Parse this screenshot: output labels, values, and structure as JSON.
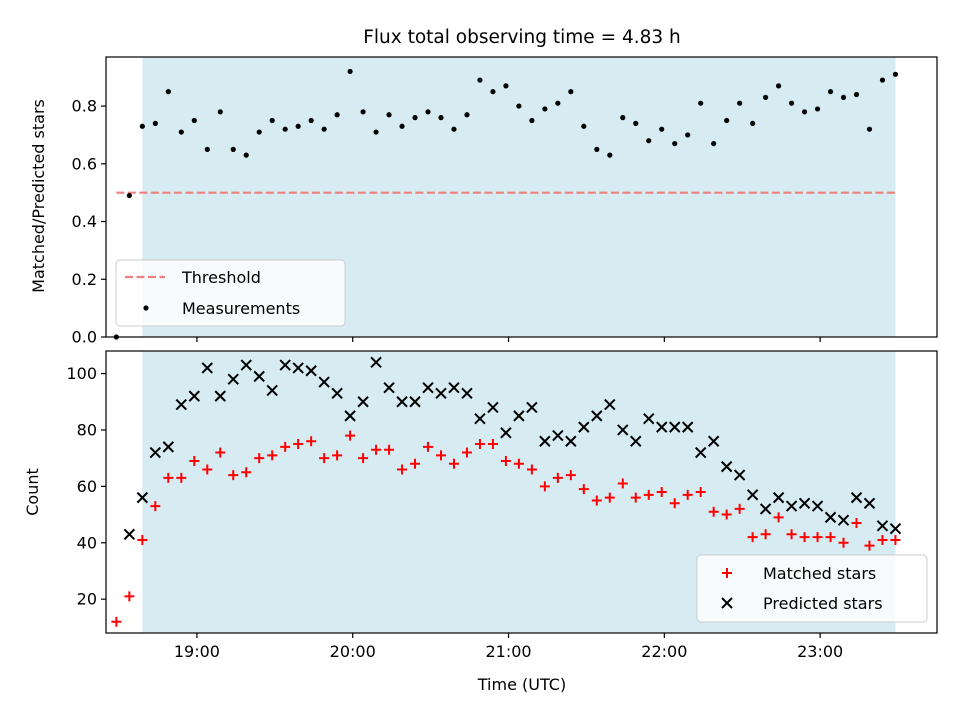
{
  "chart_data": [
    {
      "type": "scatter",
      "title": "Flux total observing time = 4.83 h",
      "xlabel": "",
      "ylabel": "Matched/Predicted stars",
      "xlim": [
        "18:25",
        "23:45"
      ],
      "ylim": [
        0,
        0.97
      ],
      "yticks": [
        0.0,
        0.2,
        0.4,
        0.6,
        0.8
      ],
      "ytick_labels": [
        "0.0",
        "0.2",
        "0.4",
        "0.6",
        "0.8"
      ],
      "shaded_span": [
        "18:39",
        "23:29"
      ],
      "threshold": {
        "name": "Threshold",
        "value": 0.5,
        "x_range": [
          "18:29",
          "23:29"
        ],
        "color": "#f08080",
        "style": "dashed"
      },
      "legend": {
        "placement": "lower-left",
        "entries": [
          "Threshold",
          "Measurements"
        ]
      },
      "series": [
        {
          "name": "Measurements",
          "color": "#000000",
          "marker": "dot",
          "x": [
            "18:29",
            "18:34",
            "18:39",
            "18:44",
            "18:49",
            "18:54",
            "18:59",
            "19:04",
            "19:09",
            "19:14",
            "19:19",
            "19:24",
            "19:29",
            "19:34",
            "19:39",
            "19:44",
            "19:49",
            "19:54",
            "19:59",
            "20:04",
            "20:09",
            "20:14",
            "20:19",
            "20:24",
            "20:29",
            "20:34",
            "20:39",
            "20:44",
            "20:49",
            "20:54",
            "20:59",
            "21:04",
            "21:09",
            "21:14",
            "21:19",
            "21:24",
            "21:29",
            "21:34",
            "21:39",
            "21:44",
            "21:49",
            "21:54",
            "21:59",
            "22:04",
            "22:09",
            "22:14",
            "22:19",
            "22:24",
            "22:29",
            "22:34",
            "22:39",
            "22:44",
            "22:49",
            "22:54",
            "22:59",
            "23:04",
            "23:09",
            "23:14",
            "23:19",
            "23:24",
            "23:29"
          ],
          "y": [
            0.0,
            0.49,
            0.73,
            0.74,
            0.85,
            0.71,
            0.75,
            0.65,
            0.78,
            0.65,
            0.63,
            0.71,
            0.75,
            0.72,
            0.73,
            0.75,
            0.72,
            0.77,
            0.92,
            0.78,
            0.71,
            0.77,
            0.73,
            0.76,
            0.78,
            0.76,
            0.72,
            0.77,
            0.89,
            0.85,
            0.87,
            0.8,
            0.75,
            0.79,
            0.81,
            0.85,
            0.73,
            0.65,
            0.63,
            0.76,
            0.74,
            0.68,
            0.72,
            0.67,
            0.7,
            0.81,
            0.67,
            0.75,
            0.81,
            0.74,
            0.83,
            0.87,
            0.81,
            0.78,
            0.79,
            0.85,
            0.83,
            0.84,
            0.72,
            0.89,
            0.91
          ]
        }
      ]
    },
    {
      "type": "scatter",
      "title": "",
      "xlabel": "Time (UTC)",
      "ylabel": "Count",
      "xlim": [
        "18:25",
        "23:45"
      ],
      "ylim": [
        8,
        108
      ],
      "xticks": [
        "19:00",
        "20:00",
        "21:00",
        "22:00",
        "23:00"
      ],
      "yticks": [
        20,
        40,
        60,
        80,
        100
      ],
      "ytick_labels": [
        "20",
        "40",
        "60",
        "80",
        "100"
      ],
      "shaded_span": [
        "18:39",
        "23:29"
      ],
      "legend": {
        "placement": "lower-right",
        "entries": [
          "Matched stars",
          "Predicted stars"
        ]
      },
      "series": [
        {
          "name": "Matched stars",
          "color": "#ff0000",
          "marker": "plus",
          "x": [
            "18:29",
            "18:34",
            "18:39",
            "18:44",
            "18:49",
            "18:54",
            "18:59",
            "19:04",
            "19:09",
            "19:14",
            "19:19",
            "19:24",
            "19:29",
            "19:34",
            "19:39",
            "19:44",
            "19:49",
            "19:54",
            "19:59",
            "20:04",
            "20:09",
            "20:14",
            "20:19",
            "20:24",
            "20:29",
            "20:34",
            "20:39",
            "20:44",
            "20:49",
            "20:54",
            "20:59",
            "21:04",
            "21:09",
            "21:14",
            "21:19",
            "21:24",
            "21:29",
            "21:34",
            "21:39",
            "21:44",
            "21:49",
            "21:54",
            "21:59",
            "22:04",
            "22:09",
            "22:14",
            "22:19",
            "22:24",
            "22:29",
            "22:34",
            "22:39",
            "22:44",
            "22:49",
            "22:54",
            "22:59",
            "23:04",
            "23:09",
            "23:14",
            "23:19",
            "23:24",
            "23:29"
          ],
          "y": [
            12,
            21,
            41,
            53,
            63,
            63,
            69,
            66,
            72,
            64,
            65,
            70,
            71,
            74,
            75,
            76,
            70,
            71,
            78,
            70,
            73,
            73,
            66,
            68,
            74,
            71,
            68,
            72,
            75,
            75,
            69,
            68,
            66,
            60,
            63,
            64,
            59,
            55,
            56,
            61,
            56,
            57,
            58,
            54,
            57,
            58,
            51,
            50,
            52,
            42,
            43,
            49,
            43,
            42,
            42,
            42,
            40,
            47,
            39,
            41,
            41
          ]
        },
        {
          "name": "Predicted stars",
          "color": "#000000",
          "marker": "x",
          "x": [
            "18:34",
            "18:39",
            "18:44",
            "18:49",
            "18:54",
            "18:59",
            "19:04",
            "19:09",
            "19:14",
            "19:19",
            "19:24",
            "19:29",
            "19:34",
            "19:39",
            "19:44",
            "19:49",
            "19:54",
            "19:59",
            "20:04",
            "20:09",
            "20:14",
            "20:19",
            "20:24",
            "20:29",
            "20:34",
            "20:39",
            "20:44",
            "20:49",
            "20:54",
            "20:59",
            "21:04",
            "21:09",
            "21:14",
            "21:19",
            "21:24",
            "21:29",
            "21:34",
            "21:39",
            "21:44",
            "21:49",
            "21:54",
            "21:59",
            "22:04",
            "22:09",
            "22:14",
            "22:19",
            "22:24",
            "22:29",
            "22:34",
            "22:39",
            "22:44",
            "22:49",
            "22:54",
            "22:59",
            "23:04",
            "23:09",
            "23:14",
            "23:19",
            "23:24",
            "23:29"
          ],
          "y": [
            43,
            56,
            72,
            74,
            89,
            92,
            102,
            92,
            98,
            103,
            99,
            94,
            103,
            102,
            101,
            97,
            93,
            85,
            90,
            104,
            95,
            90,
            90,
            95,
            93,
            95,
            93,
            84,
            88,
            79,
            85,
            88,
            76,
            78,
            76,
            81,
            85,
            89,
            80,
            76,
            84,
            81,
            81,
            81,
            72,
            76,
            67,
            64,
            57,
            52,
            56,
            53,
            54,
            53,
            49,
            48,
            56,
            54,
            46,
            45
          ]
        }
      ]
    }
  ]
}
